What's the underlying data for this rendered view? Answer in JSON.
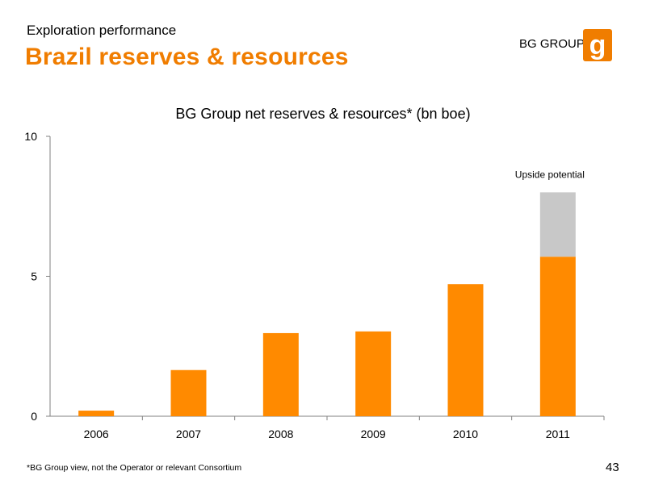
{
  "slide": {
    "subtitle": "Exploration performance",
    "title": "Brazil reserves & resources",
    "logo_text": "BG GROUP",
    "logo_icon": "bg-logo-icon",
    "footnote": "*BG Group view, not the Operator or relevant Consortium",
    "page_number": "43"
  },
  "colors": {
    "accent": "#f07d00",
    "bar_primary": "#ff8a00",
    "bar_upside": "#c8c8c8",
    "axis": "#808080"
  },
  "chart_data": {
    "type": "bar",
    "stacked": true,
    "title": "BG Group net reserves & resources* (bn boe)",
    "xlabel": "",
    "ylabel": "",
    "ylim": [
      0,
      10
    ],
    "yticks": [
      0,
      5,
      10
    ],
    "categories": [
      "2006",
      "2007",
      "2008",
      "2009",
      "2010",
      "2011"
    ],
    "series": [
      {
        "values": [
          0.2,
          1.65,
          2.97,
          3.03,
          4.72,
          5.7
        ]
      },
      {
        "name": "Upside potential",
        "values": [
          0,
          0,
          0,
          0,
          0,
          2.3
        ]
      }
    ],
    "grid": false
  }
}
